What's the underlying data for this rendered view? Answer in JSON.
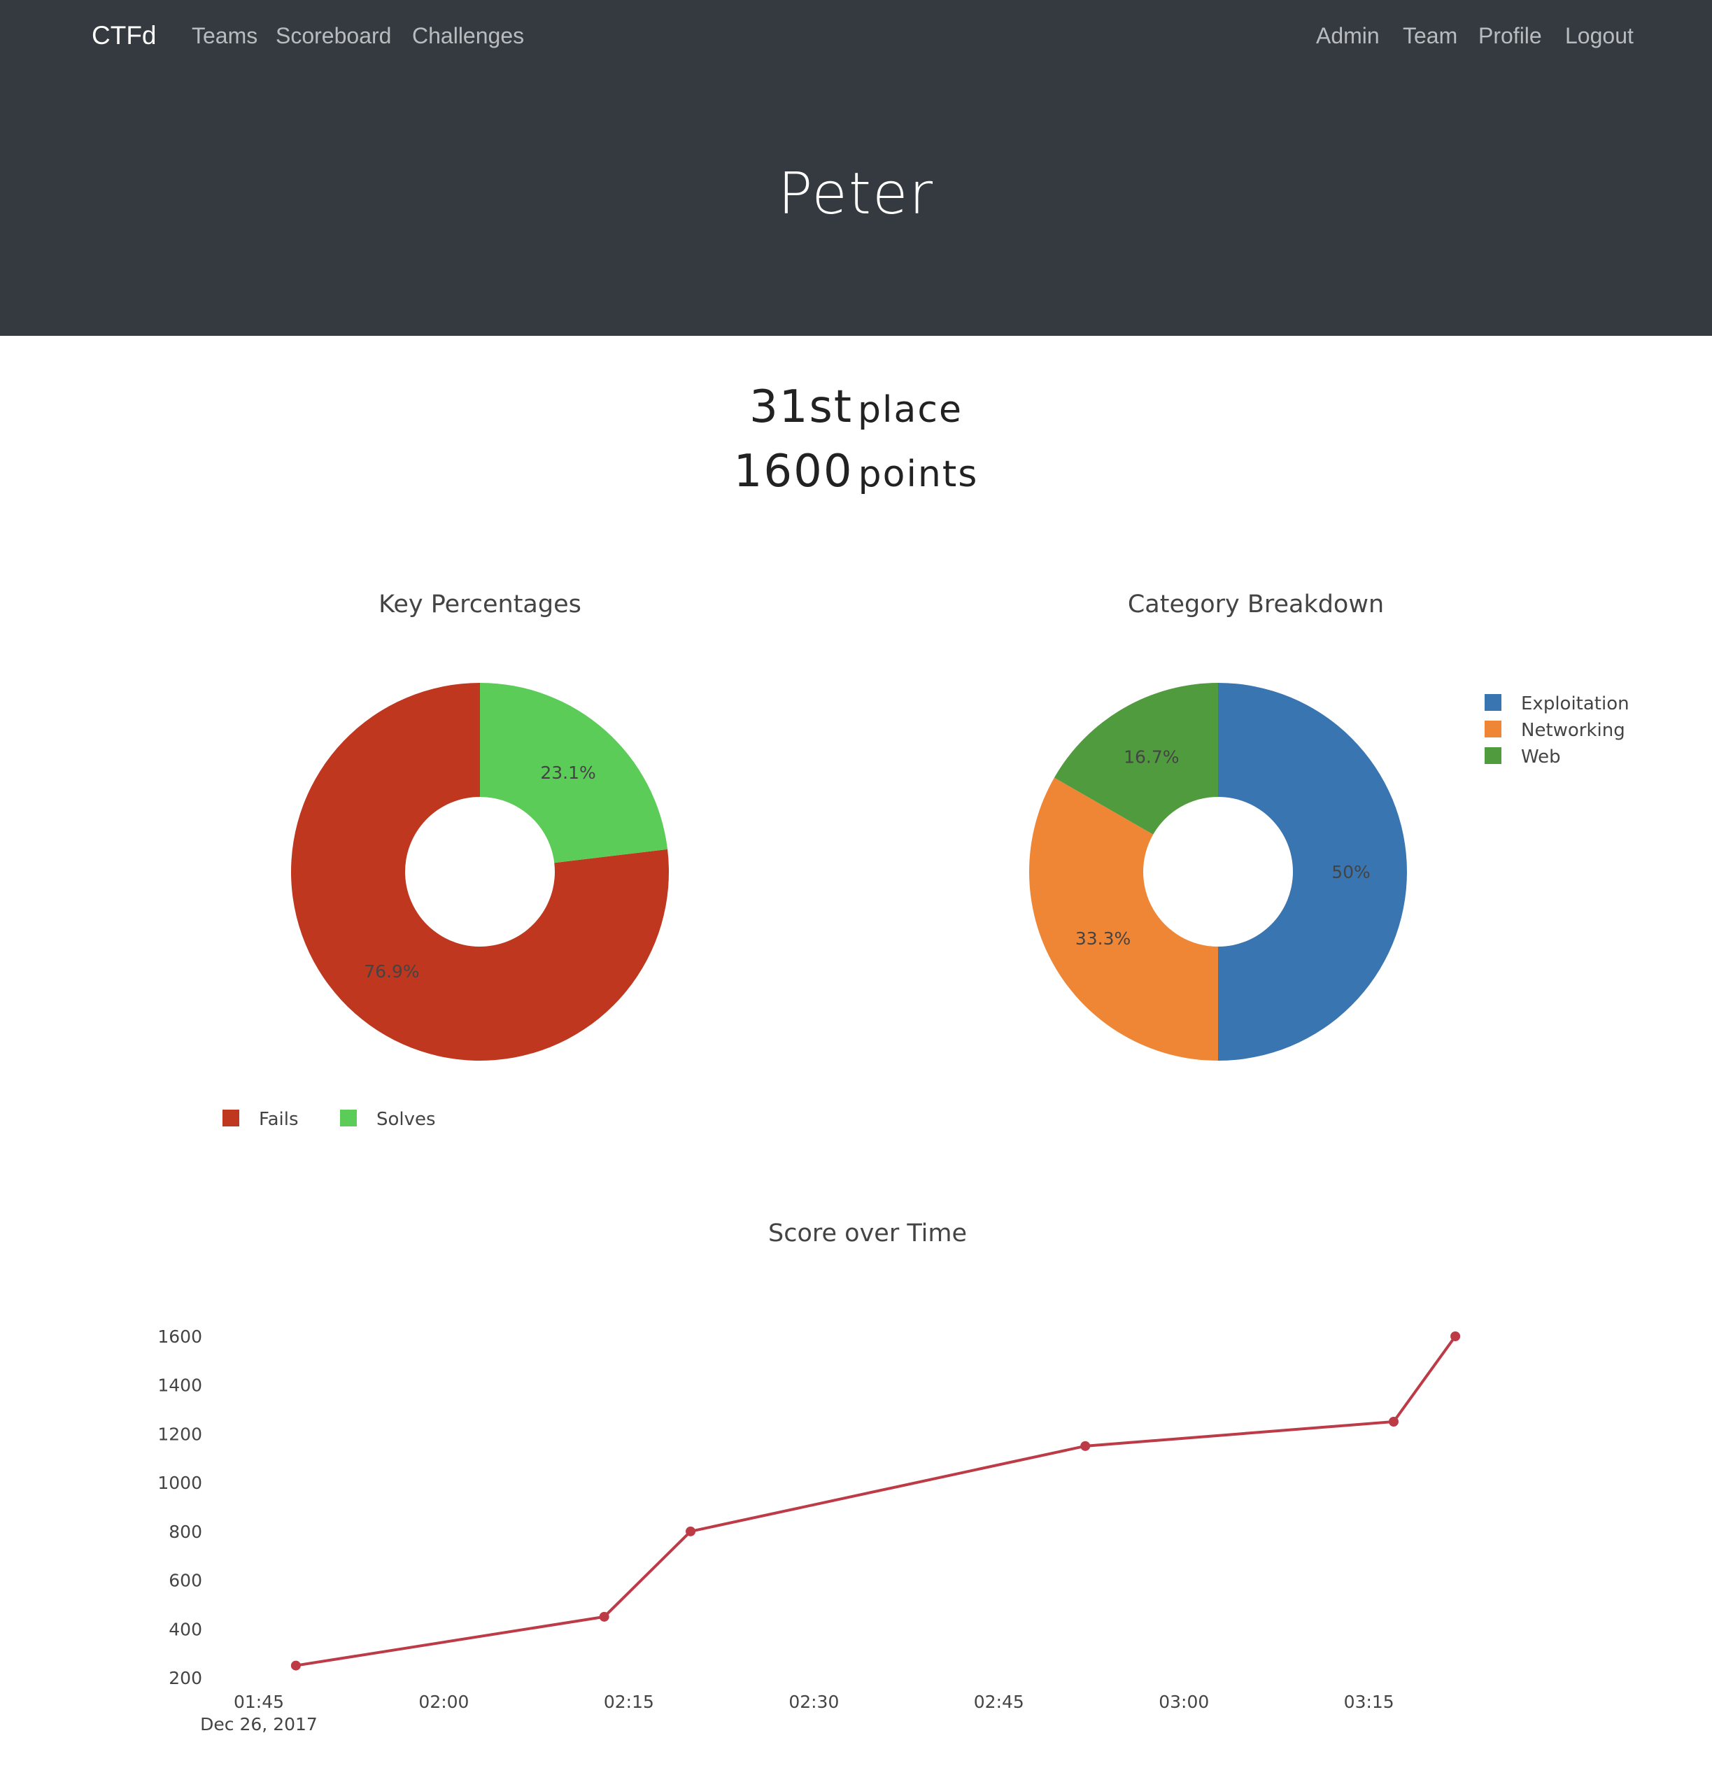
{
  "nav": {
    "brand": "CTFd",
    "left_links": [
      "Teams",
      "Scoreboard",
      "Challenges"
    ],
    "right_links": [
      "Admin",
      "Team",
      "Profile",
      "Logout"
    ]
  },
  "header": {
    "title": "Peter"
  },
  "stats": {
    "place_number": "31st",
    "place_label": "place",
    "points_number": "1600",
    "points_label": "points"
  },
  "colors": {
    "navbar": "#343a40",
    "fails": "#bf371f",
    "solves": "#5ccc58",
    "exploitation": "#3975b0",
    "networking": "#ee8636",
    "web": "#519b3f",
    "score_line": "#bd3b46"
  },
  "chart_data": [
    {
      "type": "pie",
      "title": "Key Percentages",
      "hole": true,
      "labels": [
        "Fails",
        "Solves"
      ],
      "values": [
        76.9,
        23.1
      ],
      "value_labels": [
        "76.9%",
        "23.1%"
      ],
      "colors": [
        "#bf371f",
        "#5ccc58"
      ],
      "legend_position": "bottom"
    },
    {
      "type": "pie",
      "title": "Category Breakdown",
      "hole": true,
      "labels": [
        "Exploitation",
        "Networking",
        "Web"
      ],
      "values": [
        50,
        33.3,
        16.7
      ],
      "value_labels": [
        "50%",
        "33.3%",
        "16.7%"
      ],
      "colors": [
        "#3975b0",
        "#ee8636",
        "#519b3f"
      ],
      "legend_position": "top-right"
    },
    {
      "type": "line",
      "title": "Score over Time",
      "x": [
        "01:48",
        "02:13",
        "02:20",
        "02:52",
        "03:17",
        "03:22"
      ],
      "y": [
        250,
        450,
        800,
        1150,
        1250,
        1600
      ],
      "x_ticks": [
        "01:45",
        "02:00",
        "02:15",
        "02:30",
        "02:45",
        "03:00",
        "03:15"
      ],
      "x_tick_sublabel": "Dec 26, 2017",
      "y_ticks": [
        200,
        400,
        600,
        800,
        1000,
        1200,
        1400,
        1600
      ],
      "ylim": [
        200,
        1600
      ],
      "color": "#bd3b46",
      "grid": false
    }
  ]
}
